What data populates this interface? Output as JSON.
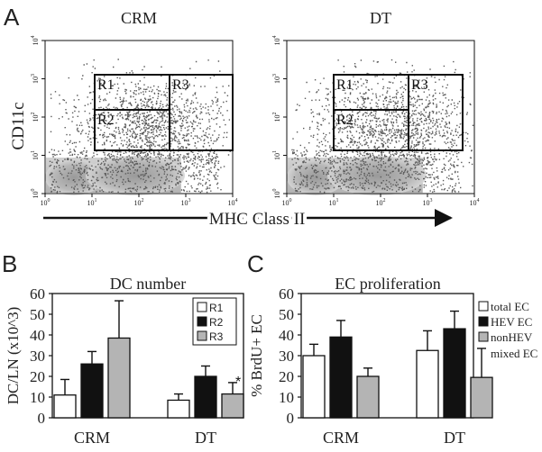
{
  "panel_letters": [
    "A",
    "B",
    "C"
  ],
  "flow": {
    "y_label": "CD11c",
    "x_label": "MHC Class II",
    "tick_labels": [
      "10^0",
      "10^1",
      "10^2",
      "10^3",
      "10^4"
    ],
    "plots": [
      {
        "title": "CRM",
        "gates": [
          "R1",
          "R2",
          "R3"
        ]
      },
      {
        "title": "DT",
        "gates": [
          "R1",
          "R2",
          "R3"
        ]
      }
    ]
  },
  "chart_data": [
    {
      "type": "bar",
      "title": "DC number",
      "ylabel": "DC/LN (x10^3)",
      "ylim": [
        0,
        60
      ],
      "yticks": [
        "0",
        "10",
        "20",
        "30",
        "40",
        "50",
        "60"
      ],
      "categories": [
        "CRM",
        "DT"
      ],
      "series": [
        {
          "name": "R1",
          "color": "#ffffff",
          "values": [
            11,
            8.5
          ],
          "errors": [
            7.5,
            3
          ]
        },
        {
          "name": "R2",
          "color": "#111111",
          "values": [
            26,
            20
          ],
          "errors": [
            6,
            5
          ]
        },
        {
          "name": "R3",
          "color": "#b4b4b4",
          "values": [
            38.5,
            11.5
          ],
          "errors": [
            18,
            5.5
          ]
        }
      ],
      "annotations": [
        {
          "text": "*",
          "category": "DT",
          "series": "R3"
        }
      ],
      "legend": "top-right"
    },
    {
      "type": "bar",
      "title": "EC proliferation",
      "ylabel": "% BrdU+ EC",
      "ylim": [
        0,
        60
      ],
      "yticks": [
        "0",
        "10",
        "20",
        "30",
        "40",
        "50",
        "60"
      ],
      "categories": [
        "CRM",
        "DT"
      ],
      "series": [
        {
          "name": "total EC",
          "color": "#ffffff",
          "values": [
            30,
            32.5
          ],
          "errors": [
            5.5,
            9.5
          ]
        },
        {
          "name": "HEV EC",
          "color": "#111111",
          "values": [
            39,
            43
          ],
          "errors": [
            8,
            8.5
          ]
        },
        {
          "name": "nonHEV mixed EC",
          "legend_lines": [
            "nonHEV",
            "mixed EC"
          ],
          "color": "#b4b4b4",
          "values": [
            20,
            19.5
          ],
          "errors": [
            4,
            14
          ]
        }
      ],
      "legend": "right"
    }
  ]
}
